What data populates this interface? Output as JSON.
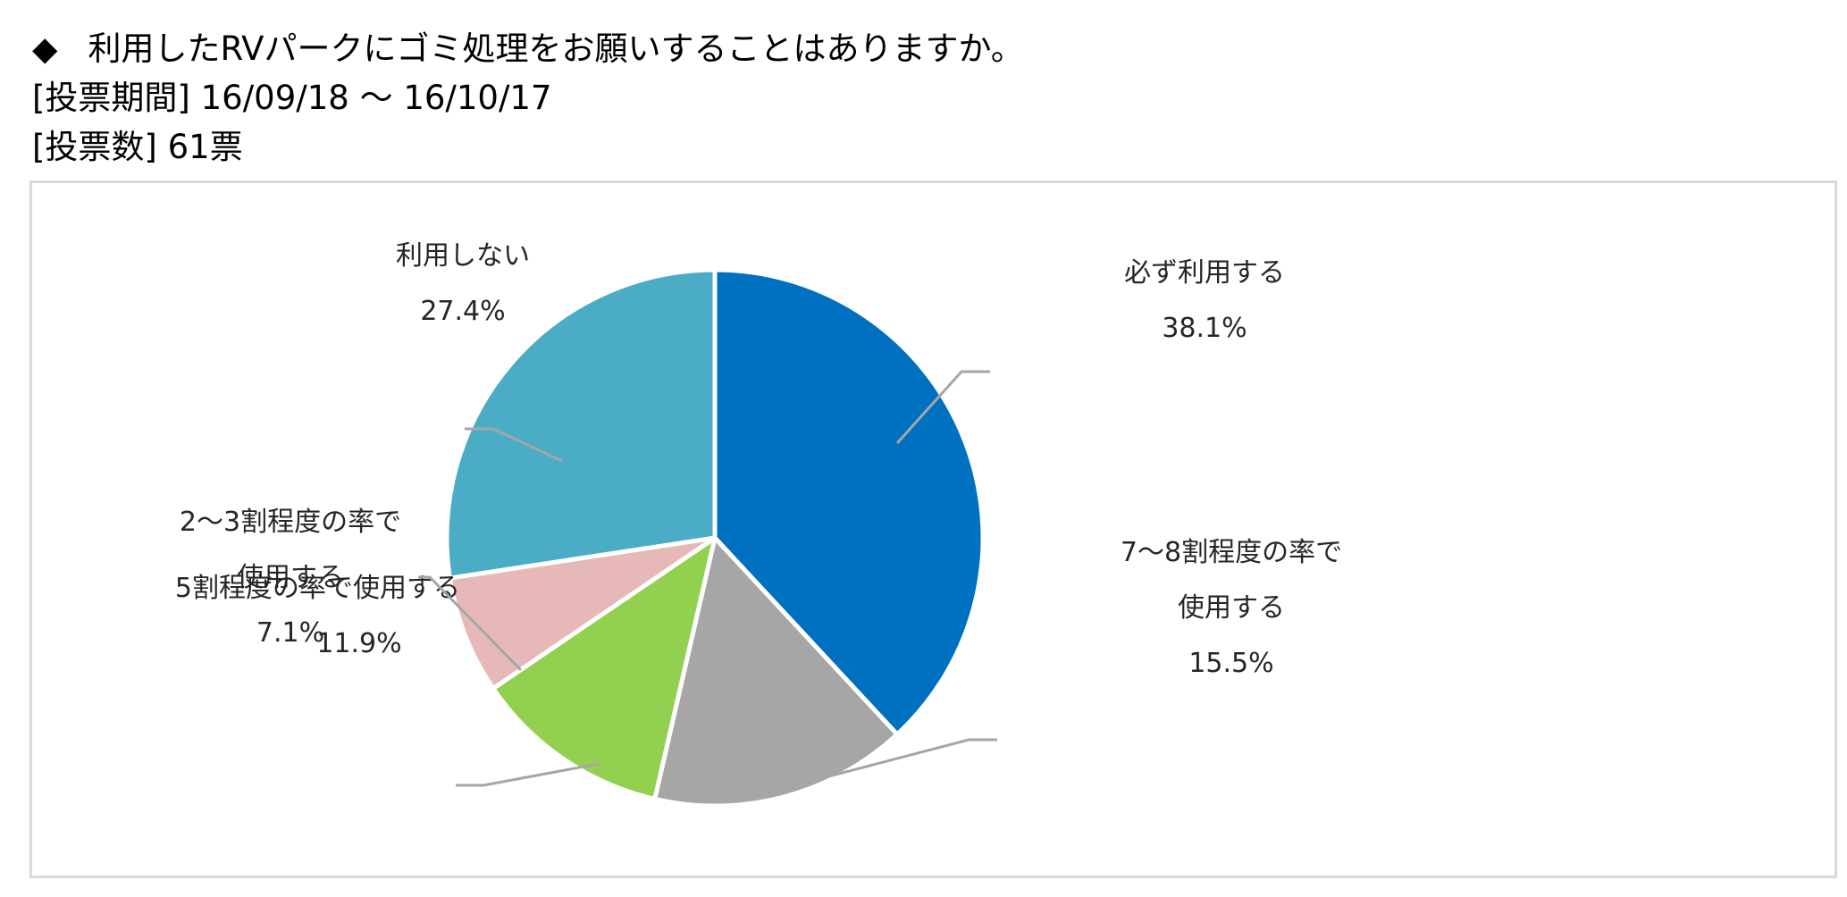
{
  "header": {
    "bullet": "◆",
    "question": "利用したRVパークにゴミ処理をお願いすることはありますか。",
    "period": "[投票期間] 16/09/18 ～ 16/10/17",
    "votes": "[投票数] 61票"
  },
  "chart_data": {
    "type": "pie",
    "start_angle_deg": 0,
    "direction": "clockwise",
    "slices": [
      {
        "label_lines": [
          "必ず利用する"
        ],
        "percent_label": "38.1%",
        "value": 38.1,
        "color": "#0070c0"
      },
      {
        "label_lines": [
          "7～8割程度の率で",
          "使用する"
        ],
        "percent_label": "15.5%",
        "value": 15.5,
        "color": "#a6a6a6"
      },
      {
        "label_lines": [
          "5割程度の率で使用する"
        ],
        "percent_label": "11.9%",
        "value": 11.9,
        "color": "#92d050"
      },
      {
        "label_lines": [
          "2～3割程度の率で",
          "使用する"
        ],
        "percent_label": "7.1%",
        "value": 7.1,
        "color": "#e6b9b8"
      },
      {
        "label_lines": [
          "利用しない"
        ],
        "percent_label": "27.4%",
        "value": 27.4,
        "color": "#4bacc6"
      }
    ],
    "slice_border_color": "#ffffff",
    "leader_line_color": "#a6a6a6",
    "frame_border_color": "#d9d9d9"
  }
}
